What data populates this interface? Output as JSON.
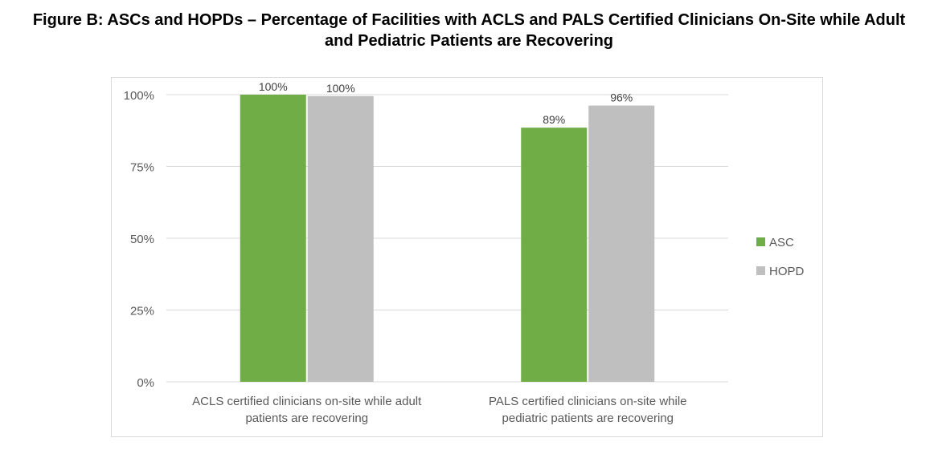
{
  "title_line1": "Figure B: ASCs and HOPDs – Percentage of Facilities with ACLS and PALS Certified Clinicians On-Site while Adult",
  "title_line2": "and Pediatric Patients are Recovering",
  "chart_data": {
    "type": "bar",
    "title": "Figure B: ASCs and HOPDs – Percentage of Facilities with ACLS and PALS Certified Clinicians On-Site while Adult and Pediatric Patients are Recovering",
    "categories": [
      [
        "ACLS certified clinicians on-site while adult",
        "patients are recovering"
      ],
      [
        "PALS certified clinicians on-site while",
        "pediatric patients are recovering"
      ]
    ],
    "series": [
      {
        "name": "ASC",
        "color": "#70AD47",
        "values": [
          100,
          88.5
        ],
        "labels": [
          "100%",
          "89%"
        ]
      },
      {
        "name": "HOPD",
        "color": "#BFBFBF",
        "values": [
          99.5,
          96.2
        ],
        "labels": [
          "100%",
          "96%"
        ]
      }
    ],
    "ylim": [
      0,
      100
    ],
    "yticks": [
      0,
      25,
      50,
      75,
      100
    ],
    "ytick_labels": [
      "0%",
      "25%",
      "50%",
      "75%",
      "100%"
    ],
    "xlabel": "",
    "ylabel": "",
    "grid": true,
    "legend": "right"
  }
}
